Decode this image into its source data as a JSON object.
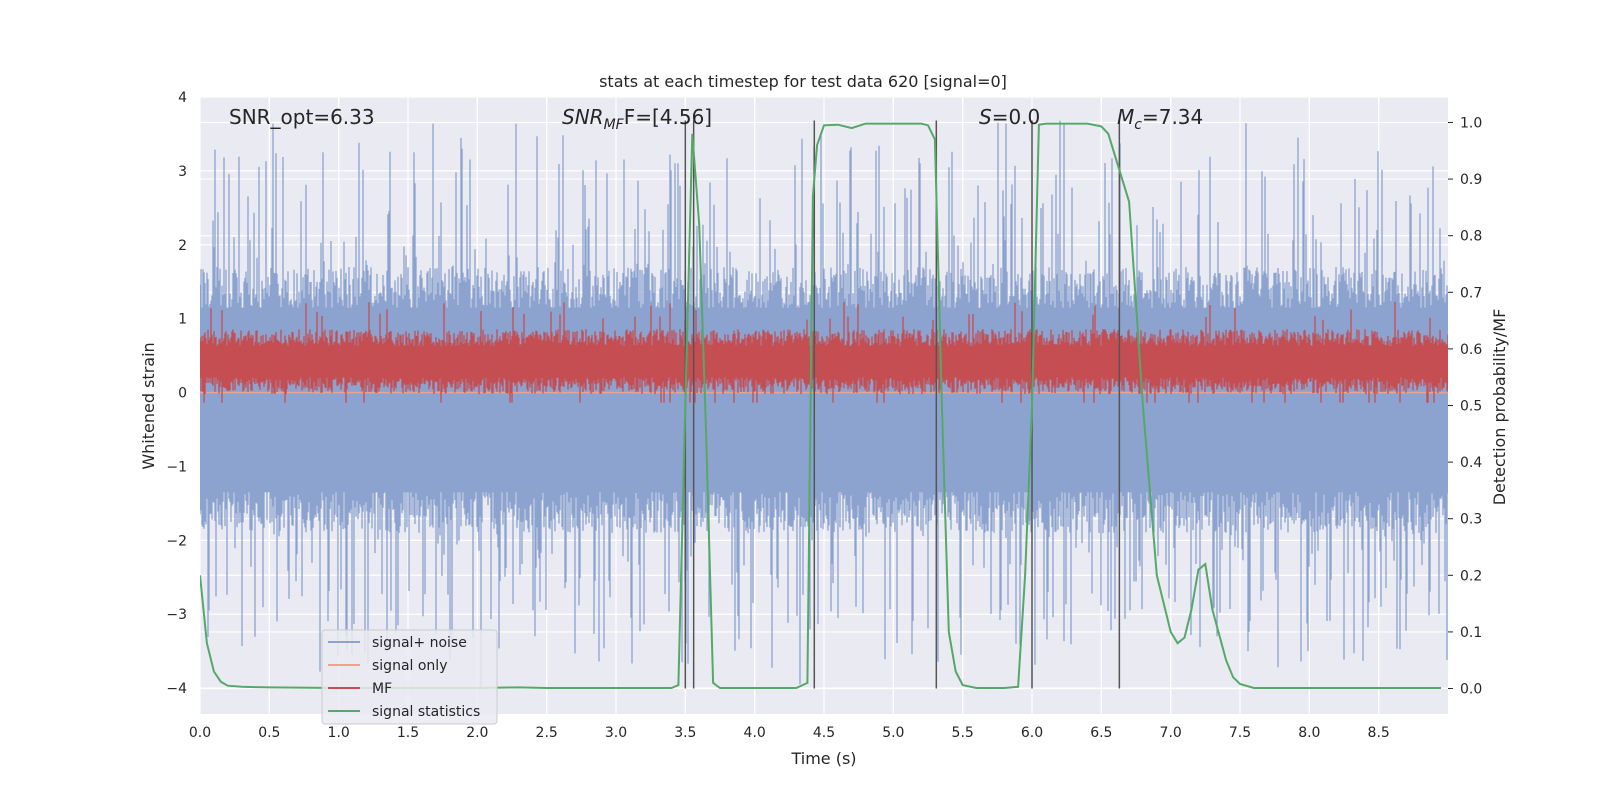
{
  "chart_data": {
    "type": "line",
    "title": "stats at each timestep for test data 620 [signal=0]",
    "xlabel": "Time (s)",
    "ylabel": "Whitened strain",
    "y2label": "Detection probability/MF",
    "xlim": [
      0.0,
      9.0
    ],
    "ylim": [
      -4.35,
      4.0
    ],
    "y2lim": [
      -0.045,
      1.045
    ],
    "x_ticks": [
      "0.0",
      "0.5",
      "1.0",
      "1.5",
      "2.0",
      "2.5",
      "3.0",
      "3.5",
      "4.0",
      "4.5",
      "5.0",
      "5.5",
      "6.0",
      "6.5",
      "7.0",
      "7.5",
      "8.0",
      "8.5"
    ],
    "y_ticks": [
      "4",
      "3",
      "2",
      "1",
      "0",
      "−1",
      "−2",
      "−3",
      "−4"
    ],
    "y2_ticks": [
      "1.0",
      "0.9",
      "0.8",
      "0.7",
      "0.6",
      "0.5",
      "0.4",
      "0.3",
      "0.2",
      "0.1",
      "0.0"
    ],
    "grid": true,
    "legend_position": "lower-left",
    "annotations": {
      "snr_opt": "SNR_opt=6.33",
      "snr_mf_main": "SNR",
      "snr_mf_sub": "MF",
      "snr_mf_rest": "F=[4.56]",
      "s_main": "S",
      "s_rest": "=0.0",
      "mc_main": "M",
      "mc_sub": "c",
      "mc_rest": "=7.34"
    },
    "series": [
      {
        "name": "signal+ noise",
        "color": "#8da3cf",
        "envelope": {
          "upper_typical": 1.4,
          "lower_typical": -1.6,
          "upper_peak": 3.64,
          "lower_peak": -4.0
        }
      },
      {
        "name": "signal only",
        "color": "#e8a48f",
        "y": 0.0
      },
      {
        "name": "MF",
        "color": "#c44e52",
        "axis": "right",
        "range": [
          0.51,
          0.64
        ]
      },
      {
        "name": "signal statistics",
        "color": "#55a868",
        "axis": "right",
        "x": [
          0.0,
          0.05,
          0.1,
          0.15,
          0.2,
          0.3,
          0.5,
          1.0,
          1.5,
          2.0,
          2.3,
          2.5,
          3.0,
          3.4,
          3.45,
          3.5,
          3.55,
          3.6,
          3.65,
          3.7,
          3.75,
          3.8,
          4.0,
          4.3,
          4.38,
          4.42,
          4.45,
          4.5,
          4.6,
          4.7,
          4.8,
          5.0,
          5.2,
          5.25,
          5.3,
          5.35,
          5.4,
          5.45,
          5.5,
          5.6,
          5.7,
          5.8,
          5.9,
          5.95,
          6.0,
          6.05,
          6.1,
          6.2,
          6.4,
          6.5,
          6.55,
          6.6,
          6.7,
          6.8,
          6.9,
          7.0,
          7.05,
          7.1,
          7.15,
          7.2,
          7.25,
          7.3,
          7.4,
          7.45,
          7.5,
          7.6,
          7.8,
          8.0,
          8.5,
          8.95
        ],
        "y": [
          0.2,
          0.08,
          0.03,
          0.012,
          0.005,
          0.003,
          0.002,
          0.001,
          0.001,
          0.001,
          0.002,
          0.001,
          0.001,
          0.001,
          0.006,
          0.5,
          0.98,
          0.82,
          0.45,
          0.01,
          0.001,
          0.001,
          0.001,
          0.001,
          0.01,
          0.87,
          0.96,
          0.995,
          0.996,
          0.99,
          0.998,
          0.998,
          0.998,
          0.995,
          0.97,
          0.5,
          0.1,
          0.03,
          0.006,
          0.001,
          0.001,
          0.001,
          0.003,
          0.2,
          0.5,
          0.996,
          0.998,
          0.998,
          0.998,
          0.993,
          0.98,
          0.94,
          0.86,
          0.5,
          0.2,
          0.1,
          0.08,
          0.09,
          0.14,
          0.21,
          0.22,
          0.14,
          0.05,
          0.02,
          0.008,
          0.001,
          0.001,
          0.001,
          0.001,
          0.001
        ]
      }
    ],
    "vertical_lines_x": [
      3.5,
      3.56,
      4.43,
      5.31,
      6.0,
      6.63
    ]
  }
}
